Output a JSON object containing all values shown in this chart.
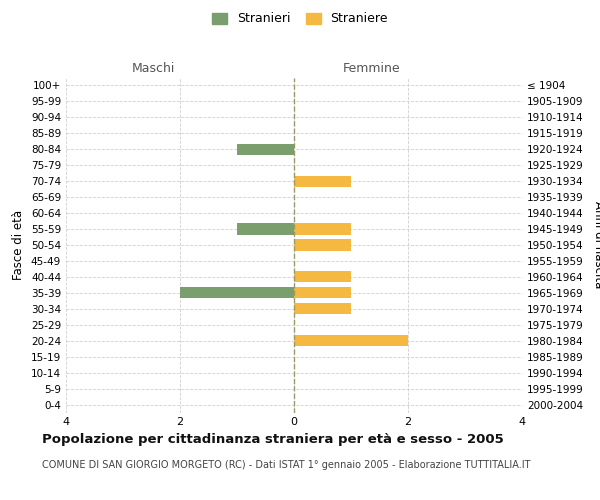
{
  "age_groups": [
    "100+",
    "95-99",
    "90-94",
    "85-89",
    "80-84",
    "75-79",
    "70-74",
    "65-69",
    "60-64",
    "55-59",
    "50-54",
    "45-49",
    "40-44",
    "35-39",
    "30-34",
    "25-29",
    "20-24",
    "15-19",
    "10-14",
    "5-9",
    "0-4"
  ],
  "birth_years": [
    "≤ 1904",
    "1905-1909",
    "1910-1914",
    "1915-1919",
    "1920-1924",
    "1925-1929",
    "1930-1934",
    "1935-1939",
    "1940-1944",
    "1945-1949",
    "1950-1954",
    "1955-1959",
    "1960-1964",
    "1965-1969",
    "1970-1974",
    "1975-1979",
    "1980-1984",
    "1985-1989",
    "1990-1994",
    "1995-1999",
    "2000-2004"
  ],
  "maschi": [
    0,
    0,
    0,
    0,
    1,
    0,
    0,
    0,
    0,
    1,
    0,
    0,
    0,
    2,
    0,
    0,
    0,
    0,
    0,
    0,
    0
  ],
  "femmine": [
    0,
    0,
    0,
    0,
    0,
    0,
    1,
    0,
    0,
    1,
    1,
    0,
    1,
    1,
    1,
    0,
    2,
    0,
    0,
    0,
    0
  ],
  "color_maschi": "#7a9e6e",
  "color_femmine": "#f5b942",
  "xlim": 4,
  "title": "Popolazione per cittadinanza straniera per età e sesso - 2005",
  "subtitle": "COMUNE DI SAN GIORGIO MORGETO (RC) - Dati ISTAT 1° gennaio 2005 - Elaborazione TUTTITALIA.IT",
  "ylabel_left": "Fasce di età",
  "ylabel_right": "Anni di nascita",
  "label_maschi": "Stranieri",
  "label_femmine": "Straniere",
  "header_left": "Maschi",
  "header_right": "Femmine",
  "bg_color": "#ffffff",
  "grid_color": "#d0d0d0",
  "axis_color": "#888888"
}
